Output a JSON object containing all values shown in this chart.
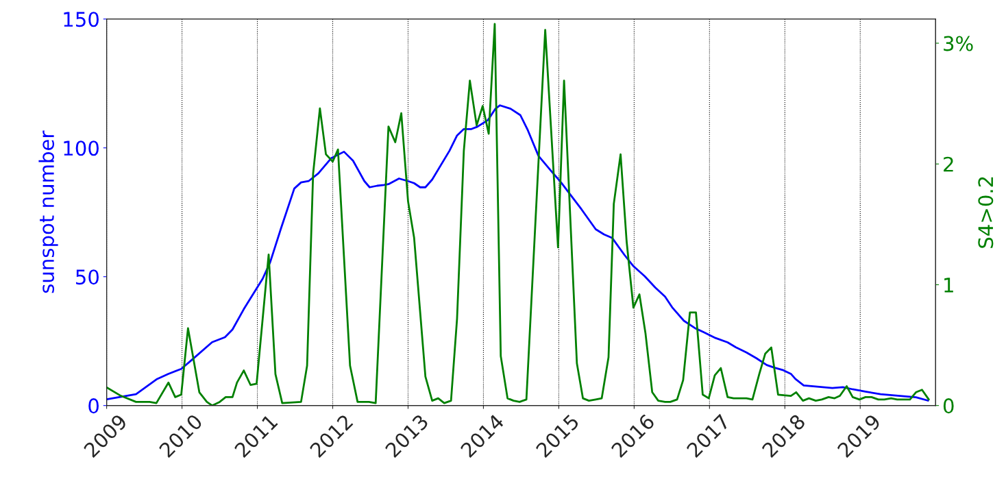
{
  "chart_data": {
    "type": "line",
    "ylabel": "sunspot number",
    "y2label": "S4>0.2",
    "xlim": [
      2009,
      2020
    ],
    "xticks": [
      2009,
      2010,
      2011,
      2012,
      2013,
      2014,
      2015,
      2016,
      2017,
      2018,
      2019
    ],
    "ylim": [
      0,
      150
    ],
    "yticks": [
      0,
      50,
      100,
      150
    ],
    "y2lim": [
      0,
      3.2
    ],
    "y2ticks": [
      0,
      1,
      2,
      {
        "value": 3,
        "label": "3%"
      }
    ],
    "grid": "x",
    "legend": false,
    "series": [
      {
        "color": "#0000ff",
        "x": [
          2009.0,
          2009.39,
          2009.67,
          2009.82,
          2009.99,
          2010.13,
          2010.4,
          2010.57,
          2010.67,
          2010.82,
          2011.07,
          2011.17,
          2011.31,
          2011.49,
          2011.58,
          2011.68,
          2011.81,
          2011.98,
          2012.15,
          2012.27,
          2012.42,
          2012.49,
          2012.59,
          2012.68,
          2012.74,
          2012.88,
          2013.0,
          2013.08,
          2013.16,
          2013.23,
          2013.32,
          2013.55,
          2013.65,
          2013.74,
          2013.84,
          2013.92,
          2014.06,
          2014.16,
          2014.22,
          2014.36,
          2014.49,
          2014.59,
          2014.73,
          2014.9,
          2015.03,
          2015.17,
          2015.3,
          2015.49,
          2015.6,
          2015.71,
          2015.87,
          2015.99,
          2016.14,
          2016.28,
          2016.41,
          2016.51,
          2016.66,
          2016.81,
          2016.92,
          2017.08,
          2017.24,
          2017.35,
          2017.49,
          2017.62,
          2017.76,
          2017.86,
          2017.98,
          2018.08,
          2018.14,
          2018.25,
          2018.43,
          2018.63,
          2018.77,
          2018.9,
          2019.07,
          2019.27,
          2019.58,
          2019.74,
          2019.9
        ],
        "values": [
          2.4,
          4.4,
          10.3,
          12.3,
          14.2,
          17.7,
          24.6,
          26.5,
          29.5,
          37.4,
          49.2,
          55.6,
          68.4,
          84.2,
          86.6,
          87.1,
          90.1,
          96.0,
          98.5,
          95.0,
          87.1,
          84.7,
          85.3,
          85.6,
          85.9,
          88.1,
          87.1,
          86.3,
          84.7,
          84.7,
          87.7,
          98.9,
          104.8,
          107.3,
          107.3,
          108.2,
          110.8,
          115.2,
          116.5,
          115.2,
          112.7,
          106.8,
          96.9,
          91.0,
          86.6,
          81.2,
          76.2,
          68.4,
          66.4,
          65.0,
          58.5,
          54.1,
          50.2,
          45.8,
          42.3,
          37.9,
          32.9,
          30.0,
          28.5,
          26.2,
          24.5,
          22.6,
          20.6,
          18.4,
          15.7,
          14.7,
          13.7,
          12.3,
          10.3,
          7.8,
          7.3,
          6.8,
          7.1,
          6.3,
          5.4,
          4.4,
          3.6,
          3.2,
          1.9
        ]
      },
      {
        "color": "#008000",
        "axis": "y2",
        "x": [
          2009.0,
          2009.19,
          2009.39,
          2009.57,
          2009.66,
          2009.82,
          2009.91,
          2009.99,
          2010.08,
          2010.23,
          2010.33,
          2010.4,
          2010.5,
          2010.58,
          2010.67,
          2010.73,
          2010.82,
          2010.91,
          2010.99,
          2011.15,
          2011.24,
          2011.33,
          2011.58,
          2011.66,
          2011.74,
          2011.83,
          2011.91,
          2012.0,
          2012.07,
          2012.23,
          2012.33,
          2012.48,
          2012.57,
          2012.74,
          2012.83,
          2012.91,
          2013.0,
          2013.08,
          2013.23,
          2013.32,
          2013.4,
          2013.48,
          2013.57,
          2013.65,
          2013.74,
          2013.82,
          2013.91,
          2013.99,
          2014.07,
          2014.15,
          2014.23,
          2014.32,
          2014.4,
          2014.48,
          2014.57,
          2014.82,
          2014.99,
          2015.07,
          2015.24,
          2015.32,
          2015.4,
          2015.49,
          2015.57,
          2015.66,
          2015.73,
          2015.82,
          2015.9,
          2015.99,
          2016.07,
          2016.15,
          2016.24,
          2016.32,
          2016.41,
          2016.48,
          2016.57,
          2016.65,
          2016.74,
          2016.82,
          2016.91,
          2016.99,
          2017.07,
          2017.15,
          2017.24,
          2017.32,
          2017.4,
          2017.49,
          2017.57,
          2017.66,
          2017.74,
          2017.82,
          2017.91,
          2018.08,
          2018.15,
          2018.24,
          2018.32,
          2018.41,
          2018.49,
          2018.58,
          2018.66,
          2018.73,
          2018.82,
          2018.9,
          2018.99,
          2019.07,
          2019.15,
          2019.24,
          2019.32,
          2019.41,
          2019.49,
          2019.58,
          2019.66,
          2019.74,
          2019.82,
          2019.91
        ],
        "values": [
          0.15,
          0.08,
          0.03,
          0.03,
          0.02,
          0.19,
          0.07,
          0.09,
          0.64,
          0.11,
          0.03,
          0.0,
          0.03,
          0.07,
          0.07,
          0.19,
          0.29,
          0.17,
          0.18,
          1.25,
          0.26,
          0.02,
          0.03,
          0.33,
          1.92,
          2.46,
          2.08,
          2.02,
          2.12,
          0.33,
          0.03,
          0.03,
          0.02,
          2.31,
          2.18,
          2.42,
          1.69,
          1.39,
          0.24,
          0.04,
          0.06,
          0.02,
          0.04,
          0.72,
          2.11,
          2.69,
          2.32,
          2.48,
          2.25,
          3.16,
          0.41,
          0.06,
          0.04,
          0.03,
          0.05,
          3.11,
          1.31,
          2.69,
          0.35,
          0.06,
          0.04,
          0.05,
          0.06,
          0.4,
          1.67,
          2.08,
          1.36,
          0.81,
          0.92,
          0.6,
          0.11,
          0.04,
          0.03,
          0.03,
          0.05,
          0.21,
          0.77,
          0.77,
          0.09,
          0.06,
          0.25,
          0.31,
          0.07,
          0.06,
          0.06,
          0.06,
          0.05,
          0.26,
          0.43,
          0.48,
          0.09,
          0.08,
          0.11,
          0.04,
          0.06,
          0.04,
          0.05,
          0.07,
          0.06,
          0.08,
          0.16,
          0.07,
          0.05,
          0.07,
          0.07,
          0.05,
          0.05,
          0.06,
          0.05,
          0.05,
          0.05,
          0.11,
          0.13,
          0.05
        ]
      }
    ]
  }
}
